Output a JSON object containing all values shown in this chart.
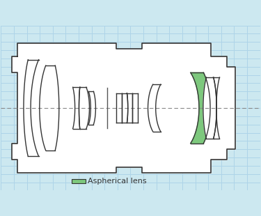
{
  "background_color": "#cce8f0",
  "grid_color": "#aed4e8",
  "lens_body_color": "#ffffff",
  "lens_outline_color": "#333333",
  "aspherical_fill": "#7dc87d",
  "legend_text": "Aspherical lens",
  "legend_color": "#7dc87d"
}
